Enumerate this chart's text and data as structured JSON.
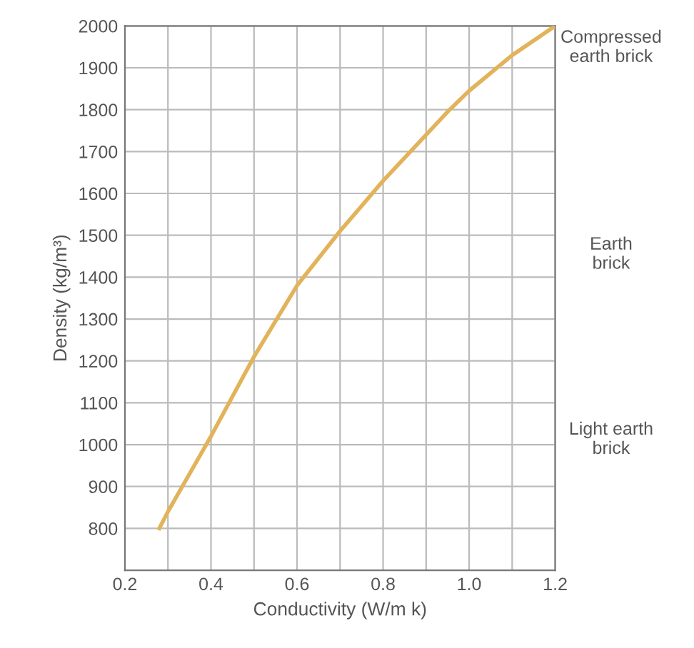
{
  "chart_data": {
    "type": "line",
    "xlabel": "Conductivity (W/m k)",
    "ylabel": "Density (kg/m³)",
    "x": [
      0.28,
      0.3,
      0.4,
      0.5,
      0.6,
      0.7,
      0.8,
      0.9,
      0.95,
      1.0,
      1.1,
      1.2
    ],
    "series": [
      {
        "color": "#e2b35a",
        "values": [
          800,
          840,
          1020,
          1210,
          1380,
          1510,
          1630,
          1740,
          1795,
          1845,
          1930,
          2000
        ]
      }
    ],
    "xlim": [
      0.2,
      1.2
    ],
    "ylim": [
      700,
      2000
    ],
    "xticks": [
      0.2,
      {
        "value": 0.3,
        "label": null
      },
      0.4,
      {
        "value": 0.5,
        "label": null
      },
      0.6,
      {
        "value": 0.7,
        "label": null
      },
      0.8,
      {
        "value": 0.9,
        "label": null
      },
      "1.0",
      {
        "value": 1.1,
        "label": null
      },
      1.2
    ],
    "yticks": [
      {
        "value": 700,
        "label": null
      },
      800,
      900,
      1000,
      1100,
      1200,
      1300,
      1400,
      1500,
      1600,
      1700,
      1800,
      1900,
      2000
    ],
    "grid": true,
    "line_style": "solid",
    "annotations": [
      "Compressed\nearth brick",
      "Earth\nbrick",
      "Light earth\nbrick"
    ]
  }
}
